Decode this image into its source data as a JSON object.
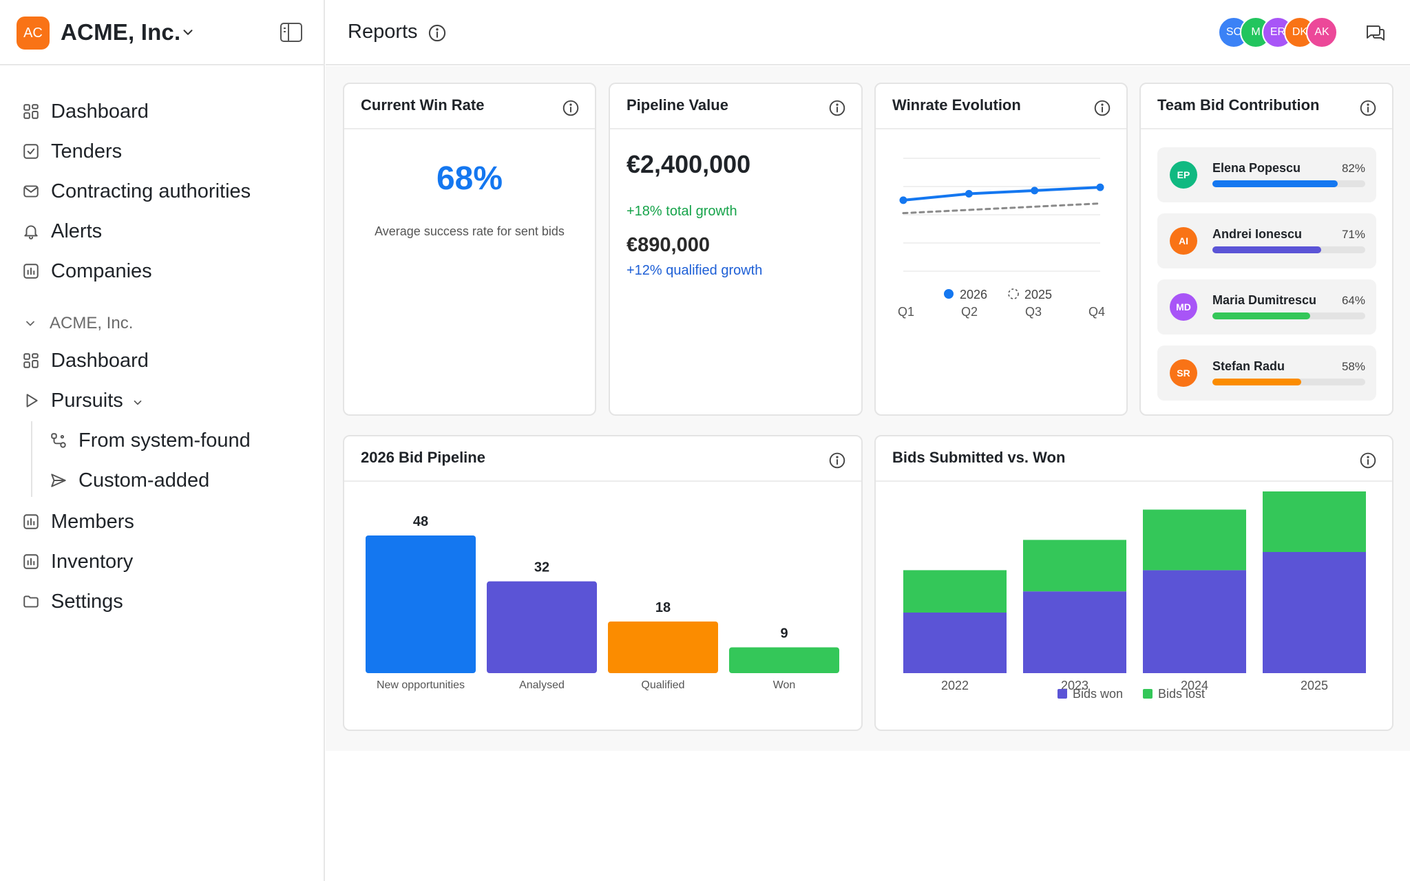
{
  "org": {
    "logo_initials": "AC",
    "name": "ACME, Inc.",
    "logo_color": "#f97316"
  },
  "nav": {
    "top_items": [
      {
        "label": "Dashboard",
        "icon": "grid-icon"
      },
      {
        "label": "Tenders",
        "icon": "check-square-icon"
      },
      {
        "label": "Contracting authorities",
        "icon": "mail-icon"
      },
      {
        "label": "Alerts",
        "icon": "bell-icon"
      },
      {
        "label": "Companies",
        "icon": "bar-chart-icon"
      }
    ],
    "section_label": "ACME, Inc.",
    "section_items": [
      {
        "label": "Dashboard",
        "icon": "grid-icon"
      },
      {
        "label": "Pursuits",
        "icon": "play-icon"
      },
      {
        "label": "From system-found",
        "icon": "flow-icon"
      },
      {
        "label": "Custom-added",
        "icon": "send-icon"
      },
      {
        "label": "Members",
        "icon": "bar-chart-icon"
      },
      {
        "label": "Inventory",
        "icon": "bar-chart-icon"
      },
      {
        "label": "Settings",
        "icon": "folder-icon"
      }
    ]
  },
  "header": {
    "title": "Reports",
    "avatars": [
      {
        "initials": "SC",
        "color": "#3b82f6"
      },
      {
        "initials": "M",
        "color": "#22c55e"
      },
      {
        "initials": "ER",
        "color": "#a855f7"
      },
      {
        "initials": "DK",
        "color": "#f97316"
      },
      {
        "initials": "AK",
        "color": "#ec4899"
      }
    ]
  },
  "cards": {
    "win_rate": {
      "title": "Current Win Rate",
      "value": "68%",
      "caption": "Average success rate for sent bids"
    },
    "pipeline_value": {
      "title": "Pipeline Value",
      "total": "€2,400,000",
      "total_growth": "+18% total growth",
      "qualified": "€890,000",
      "qualified_growth": "+12% qualified growth",
      "total_growth_color": "#16a34a",
      "qualified_growth_color": "#1d5fd6"
    },
    "winrate_evolution": {
      "title": "Winrate Evolution"
    },
    "team": {
      "title": "Team Bid Contribution",
      "members": [
        {
          "initials": "EP",
          "name": "Elena Popescu",
          "pct_label": "82%",
          "value": 0.82,
          "avatar_color": "#10b981",
          "bar_color": "#1477f0"
        },
        {
          "initials": "AI",
          "name": "Andrei Ionescu",
          "pct_label": "71%",
          "value": 0.71,
          "avatar_color": "#f97316",
          "bar_color": "#5b54d6"
        },
        {
          "initials": "MD",
          "name": "Maria Dumitrescu",
          "pct_label": "64%",
          "value": 0.64,
          "avatar_color": "#a855f7",
          "bar_color": "#34c759"
        },
        {
          "initials": "SR",
          "name": "Stefan Radu",
          "pct_label": "58%",
          "value": 0.58,
          "avatar_color": "#f97316",
          "bar_color": "#fb8c00"
        }
      ]
    },
    "bid_pipeline": {
      "title": "2026 Bid Pipeline"
    },
    "bids_submitted": {
      "title": "Bids Submitted vs. Won"
    }
  },
  "chart_data": [
    {
      "type": "line",
      "title": "Winrate Evolution",
      "categories": [
        "Q1",
        "Q2",
        "Q3",
        "Q4"
      ],
      "series": [
        {
          "name": "2026",
          "values": [
            62,
            64,
            65,
            66
          ],
          "color": "#1477f0",
          "style": "solid"
        },
        {
          "name": "2025",
          "values": [
            58,
            59,
            60,
            61
          ],
          "color": "#8a8a8a",
          "style": "dashed"
        }
      ],
      "ylim": [
        40,
        75
      ],
      "grid": true,
      "legend": "bottom"
    },
    {
      "type": "bar",
      "title": "2026 Bid Pipeline",
      "categories": [
        "New opportunities",
        "Analysed",
        "Qualified",
        "Won"
      ],
      "values": [
        48,
        32,
        18,
        9
      ],
      "colors": [
        "#1477f0",
        "#5b54d6",
        "#fb8c00",
        "#34c759"
      ],
      "ylim": [
        0,
        48
      ]
    },
    {
      "type": "bar",
      "title": "Bids Submitted vs. Won",
      "stacked": true,
      "categories": [
        "2022",
        "2023",
        "2024",
        "2025"
      ],
      "series": [
        {
          "name": "Bids won",
          "values": [
            20,
            27,
            34,
            40
          ],
          "color": "#5b54d6"
        },
        {
          "name": "Bids lost",
          "values": [
            14,
            17,
            20,
            20
          ],
          "color": "#34c759"
        }
      ],
      "ylim": [
        0,
        60
      ],
      "legend": "bottom"
    }
  ]
}
